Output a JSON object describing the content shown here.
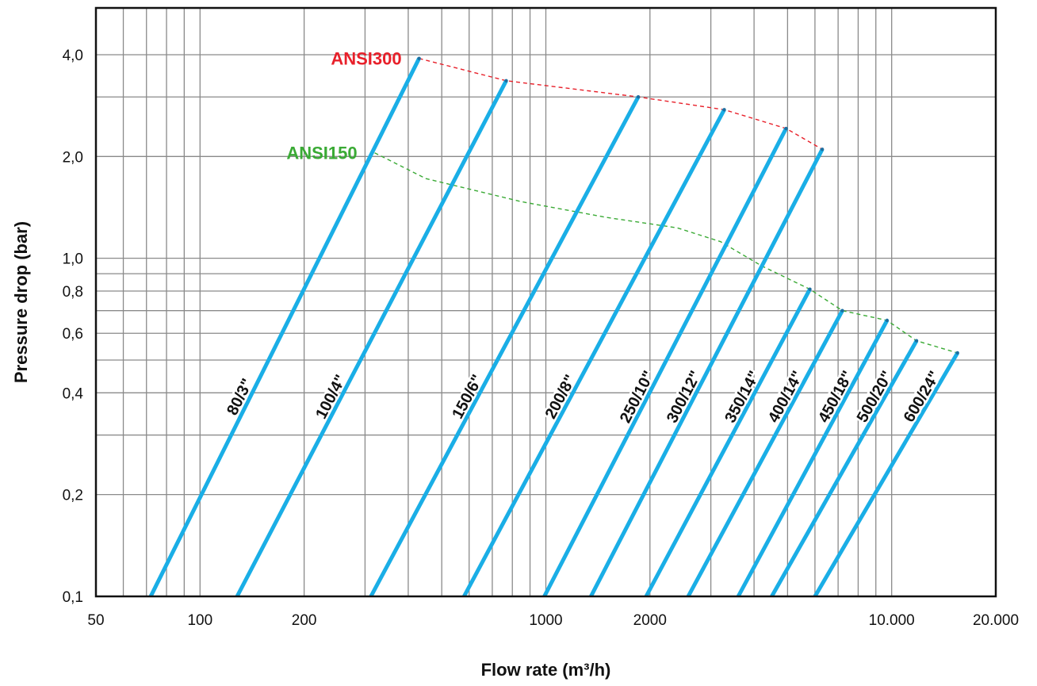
{
  "chart_data": {
    "type": "line",
    "title": "",
    "xlabel": "Flow rate (m³/h)",
    "ylabel": "Pressure drop (bar)",
    "x_scale": "log",
    "y_scale": "log",
    "xlim": [
      50,
      20000
    ],
    "ylim": [
      0.1,
      5.5
    ],
    "grid": true,
    "x_ticks": [
      {
        "value": 50,
        "label": "50"
      },
      {
        "value": 100,
        "label": "100"
      },
      {
        "value": 200,
        "label": "200"
      },
      {
        "value": 1000,
        "label": "1000"
      },
      {
        "value": 2000,
        "label": "2000"
      },
      {
        "value": 10000,
        "label": "10.000"
      },
      {
        "value": 20000,
        "label": "20.000"
      }
    ],
    "y_ticks": [
      {
        "value": 0.1,
        "label": "0,1"
      },
      {
        "value": 0.2,
        "label": "0,2"
      },
      {
        "value": 0.4,
        "label": "0,4"
      },
      {
        "value": 0.6,
        "label": "0,6"
      },
      {
        "value": 0.8,
        "label": "0,8"
      },
      {
        "value": 1.0,
        "label": "1,0"
      },
      {
        "value": 2.0,
        "label": "2,0"
      },
      {
        "value": 4.0,
        "label": "4,0"
      }
    ],
    "x_gridlines": [
      60,
      70,
      80,
      90,
      100,
      200,
      300,
      400,
      500,
      600,
      700,
      800,
      900,
      1000,
      2000,
      3000,
      4000,
      5000,
      6000,
      7000,
      8000,
      9000,
      10000
    ],
    "y_gridlines": [
      0.2,
      0.3,
      0.4,
      0.5,
      0.6,
      0.7,
      0.8,
      0.9,
      1.0,
      2.0,
      3.0,
      4.0
    ],
    "line_color": "#1aaee6",
    "series": [
      {
        "name": "80/3\"",
        "x": [
          72,
          430
        ],
        "y": [
          0.1,
          3.9
        ]
      },
      {
        "name": "100/4\"",
        "x": [
          128,
          768
        ],
        "y": [
          0.1,
          3.35
        ]
      },
      {
        "name": "150/6\"",
        "x": [
          312,
          1850
        ],
        "y": [
          0.1,
          3.0
        ]
      },
      {
        "name": "200/8\"",
        "x": [
          580,
          3280
        ],
        "y": [
          0.1,
          2.75
        ]
      },
      {
        "name": "250/10\"",
        "x": [
          990,
          4950
        ],
        "y": [
          0.1,
          2.42
        ]
      },
      {
        "name": "300/12\"",
        "x": [
          1350,
          6300
        ],
        "y": [
          0.1,
          2.1
        ]
      },
      {
        "name": "350/14\"",
        "x": [
          1950,
          5800
        ],
        "y": [
          0.1,
          0.81
        ]
      },
      {
        "name": "400/14\"",
        "x": [
          2580,
          7200
        ],
        "y": [
          0.1,
          0.7
        ]
      },
      {
        "name": "450/18\"",
        "x": [
          3600,
          9700
        ],
        "y": [
          0.1,
          0.655
        ]
      },
      {
        "name": "500/20\"",
        "x": [
          4500,
          11800
        ],
        "y": [
          0.1,
          0.57
        ]
      },
      {
        "name": "600/24\"",
        "x": [
          6000,
          15500
        ],
        "y": [
          0.1,
          0.525
        ]
      }
    ],
    "envelopes": [
      {
        "name": "ANSI300",
        "color": "#e8202a",
        "x": [
          430,
          768,
          1850,
          3280,
          4950,
          6300
        ],
        "y": [
          3.9,
          3.35,
          3.0,
          2.75,
          2.42,
          2.1
        ]
      },
      {
        "name": "ANSI150",
        "color": "#3aaa35",
        "x": [
          320,
          450,
          850,
          1500,
          2400,
          3200,
          4200,
          5800,
          7200,
          9700,
          11800,
          15500
        ],
        "y": [
          2.05,
          1.72,
          1.47,
          1.32,
          1.23,
          1.12,
          0.95,
          0.81,
          0.7,
          0.655,
          0.57,
          0.525
        ]
      }
    ]
  }
}
